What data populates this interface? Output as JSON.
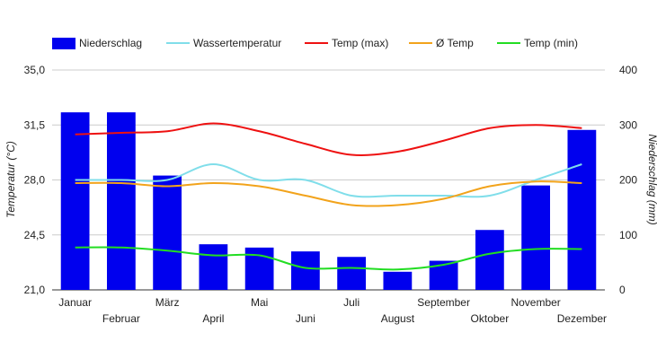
{
  "chart_data": {
    "type": "bar",
    "categories": [
      "Januar",
      "Februar",
      "März",
      "April",
      "Mai",
      "Juni",
      "Juli",
      "August",
      "September",
      "Oktober",
      "November",
      "Dezember"
    ],
    "ylabel_left": "Temperatur (°C)",
    "ylabel_right": "Niederschlag (mm)",
    "ylim_left": [
      21.0,
      35.0
    ],
    "ylim_right": [
      0,
      400
    ],
    "yticks_left": [
      "21,0",
      "24,5",
      "28,0",
      "31,5",
      "35,0"
    ],
    "yticks_right": [
      "0",
      "100",
      "200",
      "300",
      "400"
    ],
    "grid": true,
    "legend_position": "top",
    "series": [
      {
        "name": "Niederschlag",
        "kind": "bar",
        "axis": "right",
        "color": "#0000ee",
        "values": [
          323,
          323,
          208,
          83,
          77,
          70,
          60,
          33,
          53,
          109,
          190,
          291
        ]
      },
      {
        "name": "Wassertemperatur",
        "kind": "line",
        "axis": "left",
        "color": "#80deea",
        "values": [
          28.0,
          28.0,
          28.0,
          29.0,
          28.0,
          28.0,
          27.0,
          27.0,
          27.0,
          27.0,
          28.0,
          29.0
        ]
      },
      {
        "name": "Temp (max)",
        "kind": "line",
        "axis": "left",
        "color": "#ee1111",
        "values": [
          30.9,
          31.0,
          31.1,
          31.6,
          31.1,
          30.3,
          29.6,
          29.8,
          30.5,
          31.3,
          31.5,
          31.3
        ]
      },
      {
        "name": "Ø Temp",
        "kind": "line",
        "axis": "left",
        "color": "#f2a31b",
        "values": [
          27.8,
          27.8,
          27.6,
          27.8,
          27.6,
          27.0,
          26.4,
          26.4,
          26.8,
          27.6,
          27.9,
          27.8
        ]
      },
      {
        "name": "Temp (min)",
        "kind": "line",
        "axis": "left",
        "color": "#22dd22",
        "values": [
          23.7,
          23.7,
          23.5,
          23.2,
          23.2,
          22.4,
          22.4,
          22.3,
          22.6,
          23.3,
          23.6,
          23.6
        ]
      }
    ]
  }
}
